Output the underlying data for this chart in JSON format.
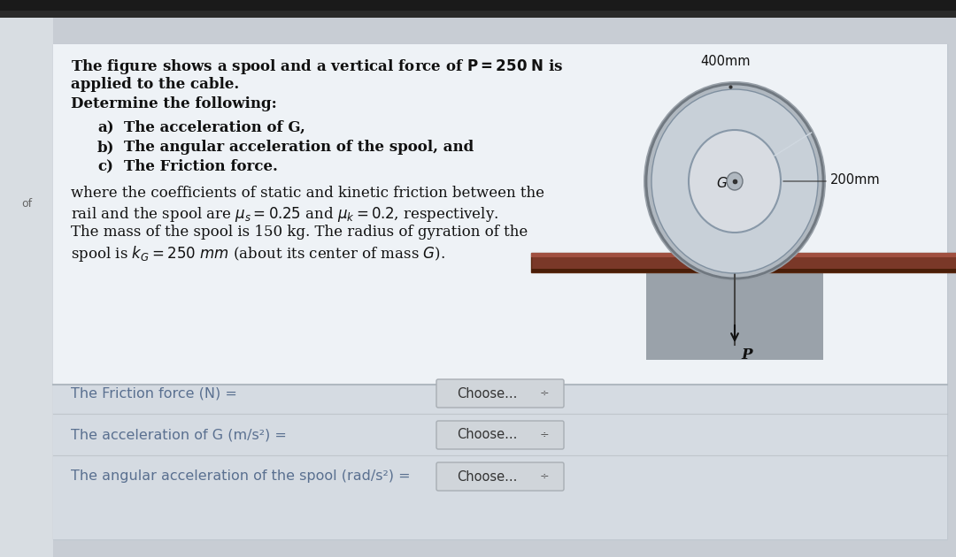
{
  "bg_outer": "#c8cdd4",
  "bg_page": "#e8edf2",
  "bg_card_top": "#eef2f5",
  "bg_card_bottom": "#d8dde2",
  "divider_color": "#b8bec4",
  "text_dark": "#111111",
  "text_question": "#5a7090",
  "choose_bg": "#d0d5da",
  "choose_border": "#a8aeb4",
  "label_400mm": "400mm",
  "label_200mm": "200mm",
  "label_G": "G",
  "label_P": "P",
  "spool_outer_color": "#a8b0b8",
  "spool_mid_color": "#c0c8d0",
  "spool_hub_color": "#d8dce0",
  "spool_center_color": "#b0b8c0",
  "spool_edge_color": "#707880",
  "rail_color": "#7a3828",
  "rail_highlight": "#a05040",
  "cable_color": "#444444",
  "q1_label": "The Friction force (N) =",
  "q2_label": "The acceleration of G (m/s²) =",
  "q3_label": "The angular acceleration of the spool (rad/s²) =",
  "choose_text": "Choose...",
  "side_text": "of"
}
